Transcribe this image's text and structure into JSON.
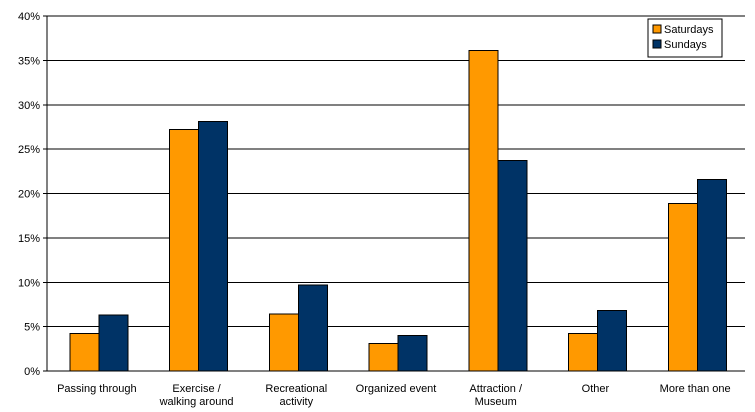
{
  "chart_data": {
    "type": "bar",
    "categories": [
      [
        "Passing through"
      ],
      [
        "Exercise /",
        "walking around"
      ],
      [
        "Recreational",
        "activity"
      ],
      [
        "Organized event"
      ],
      [
        "Attraction /",
        "Museum"
      ],
      [
        "Other"
      ],
      [
        "More than one"
      ]
    ],
    "series": [
      {
        "name": "Saturdays",
        "color": "#FF9900",
        "values": [
          4.2,
          27.2,
          6.4,
          3.1,
          36.1,
          4.2,
          18.9
        ]
      },
      {
        "name": "Sundays",
        "color": "#003366",
        "values": [
          6.3,
          28.1,
          9.7,
          4.0,
          23.7,
          6.8,
          21.6
        ]
      }
    ],
    "y_ticks": [
      "0%",
      "5%",
      "10%",
      "15%",
      "20%",
      "25%",
      "30%",
      "35%",
      "40%"
    ],
    "ylim": [
      0,
      40
    ],
    "y_unit": "%",
    "grid": true,
    "legend_position": "top-right"
  }
}
